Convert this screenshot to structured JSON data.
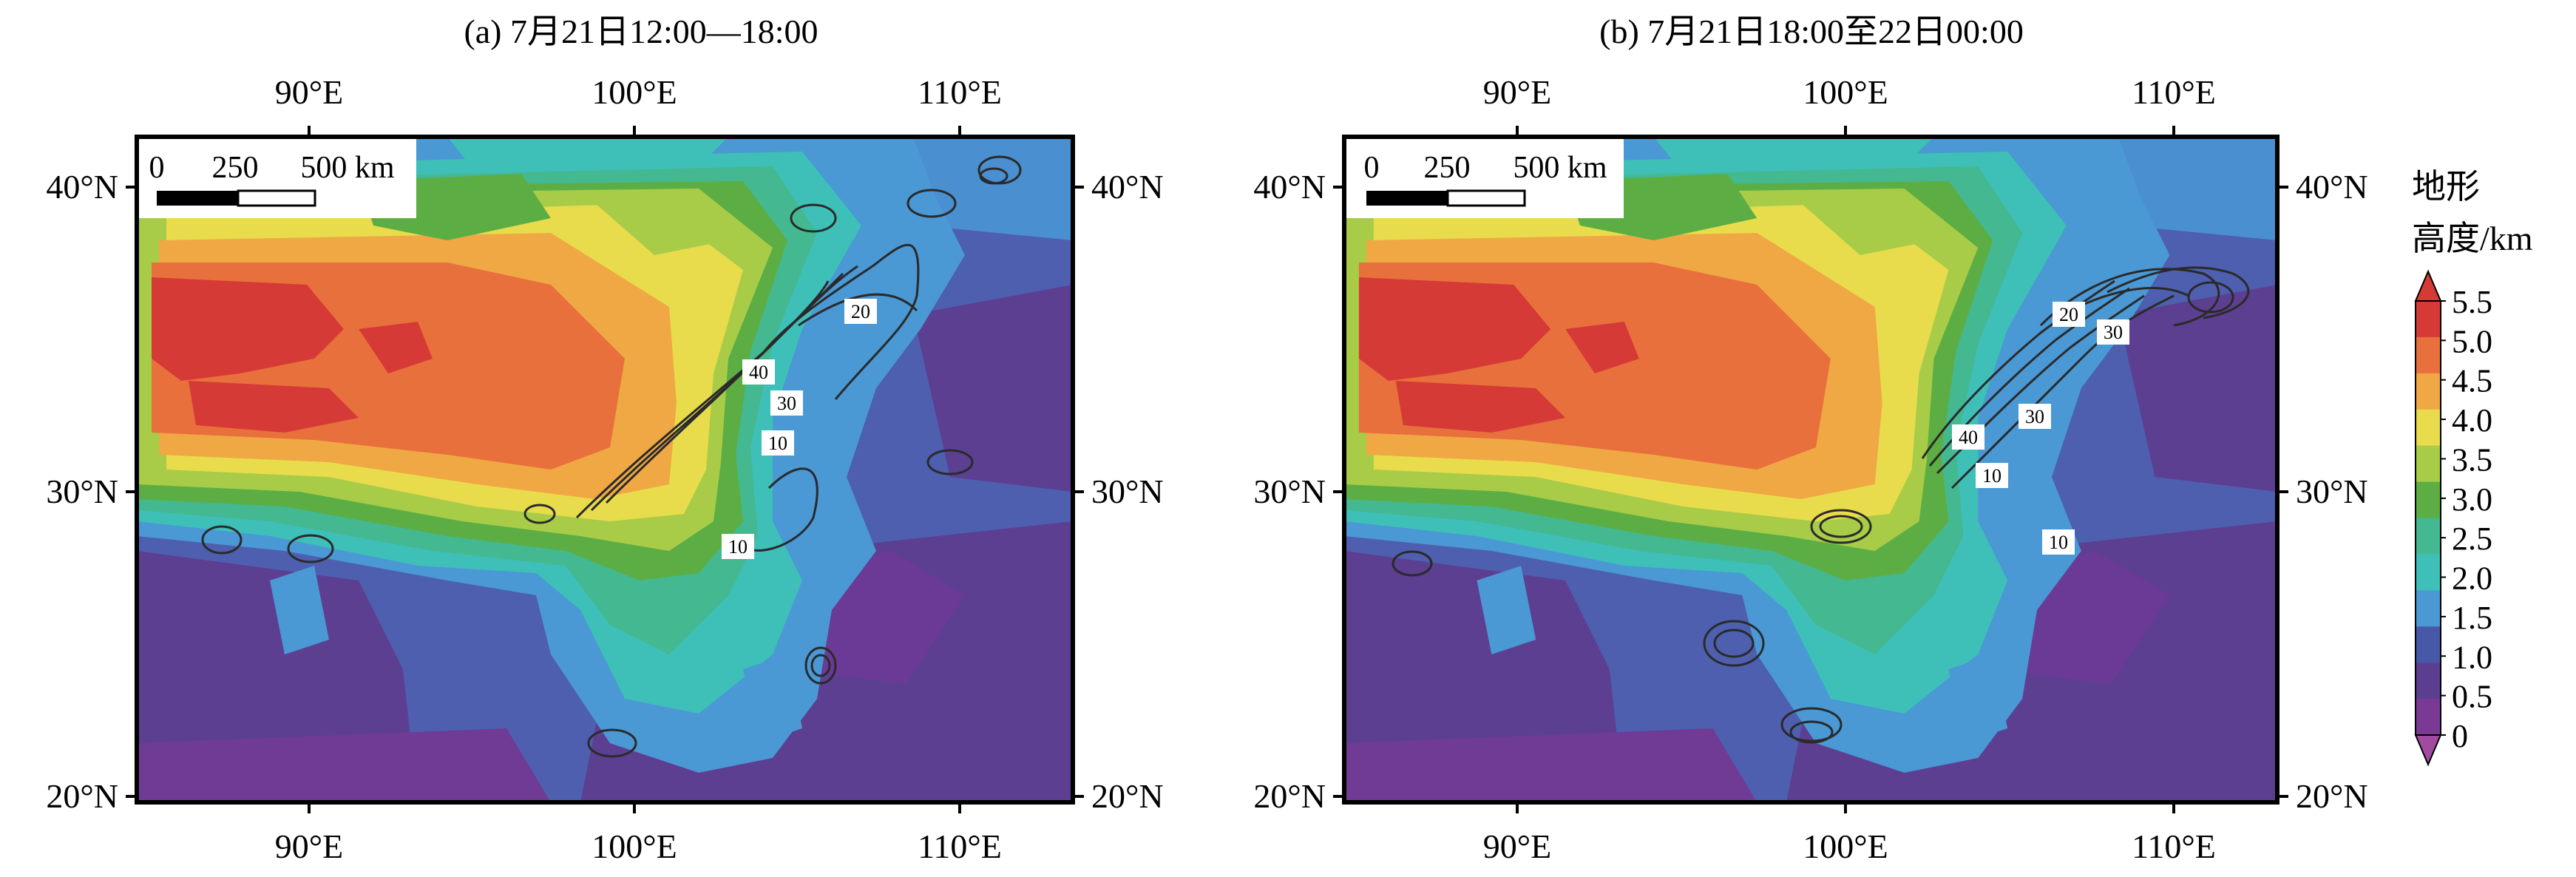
{
  "panels": [
    {
      "id": "a",
      "title": "(a) 7月21日12:00—18:00",
      "contour_labels": [
        "20",
        "40",
        "30",
        "10",
        "10"
      ]
    },
    {
      "id": "b",
      "title": "(b) 7月21日18:00至22日00:00",
      "contour_labels": [
        "20",
        "30",
        "40",
        "30",
        "10",
        "10"
      ]
    }
  ],
  "axes": {
    "x_ticks": [
      "90°E",
      "100°E",
      "110°E"
    ],
    "y_ticks": [
      "40°N",
      "30°N",
      "20°N"
    ]
  },
  "scale_bar": {
    "labels": [
      "0",
      "250",
      "500 km"
    ]
  },
  "colorbar": {
    "title_line1": "地形",
    "title_line2": "高度/km",
    "labels": [
      "5.5",
      "5.0",
      "4.5",
      "4.0",
      "3.5",
      "3.0",
      "2.5",
      "2.0",
      "1.5",
      "1.0",
      "0.5",
      "0"
    ],
    "colors": [
      "#d63a36",
      "#e8703c",
      "#f0a844",
      "#e8dc4c",
      "#a8cc48",
      "#5cae44",
      "#44b890",
      "#3ec0b8",
      "#4a98d4",
      "#4858a8",
      "#5c3e90",
      "#7a3a94"
    ]
  }
}
